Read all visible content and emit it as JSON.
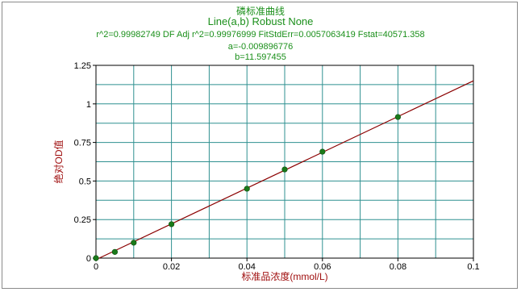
{
  "chart_data": {
    "type": "scatter",
    "title": "磷标准曲线",
    "subtitle": "Line(a,b) Robust None",
    "stats_line": "r^2=0.99982749  DF Adj r^2=0.99976999  FitStdErr=0.0057063419  Fstat=40571.358",
    "param_a": "a=-0.009896776",
    "param_b": "b=11.597455",
    "xlabel": "标准品浓度(mmol/L)",
    "ylabel": "绝对OD值",
    "xlim": [
      0,
      0.1
    ],
    "ylim": [
      0,
      1.25
    ],
    "x_ticks": [
      "0",
      "0.02",
      "0.04",
      "0.06",
      "0.08",
      "0.1"
    ],
    "y_ticks": [
      "0",
      "0.25",
      "0.5",
      "0.75",
      "1",
      "1.25"
    ],
    "x": [
      0,
      0.005,
      0.01,
      0.02,
      0.04,
      0.05,
      0.06,
      0.08
    ],
    "y": [
      0.0,
      0.04,
      0.1,
      0.22,
      0.45,
      0.575,
      0.69,
      0.915
    ],
    "fit": {
      "a": -0.009896776,
      "b": 11.597455
    },
    "grid": true,
    "colors": {
      "header": "#1a8f1a",
      "grid": "#2f9090",
      "fit_line": "#8b0000",
      "points": "#1a7a1a",
      "axis_label": "#a01010"
    }
  }
}
